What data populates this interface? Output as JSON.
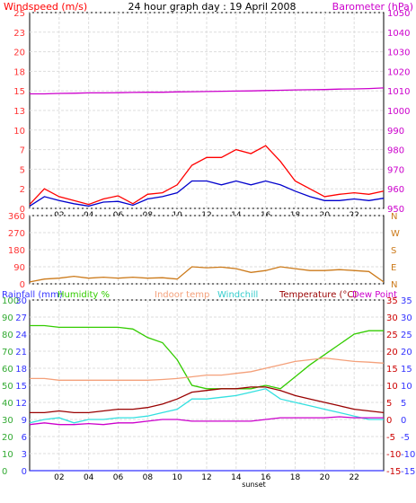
{
  "title": "24 hour graph day : 19 April 2008",
  "x_ticks": [
    "02",
    "04",
    "06",
    "08",
    "10",
    "12",
    "14",
    "16",
    "18",
    "20",
    "22"
  ],
  "sunset_label": "sunset",
  "colors": {
    "wind": "#ff0000",
    "wind_avg": "#0000cc",
    "barometer": "#cc00cc",
    "direction": "#cc7a1a",
    "rainfall": "#3333ff",
    "humidity": "#33cc00",
    "indoor": "#f4a07a",
    "windchill": "#33e0e0",
    "temperature": "#990000",
    "dewpoint": "#cc00cc",
    "axis_left": "#33aa33",
    "axis_right": "#ff3333",
    "grid": "#dddddd"
  },
  "chart_data": [
    {
      "type": "line",
      "title": "24 hour graph day : 19 April 2008",
      "left_label": "Windspeed (m/s)",
      "right_label": "Barometer (hPa)",
      "left_ticks": [
        "0",
        "2",
        "5",
        "7",
        "10",
        "13",
        "15",
        "18",
        "20",
        "23",
        "25"
      ],
      "right_ticks": [
        "950",
        "960",
        "970",
        "980",
        "990",
        "1000",
        "1010",
        "1020",
        "1030",
        "1040",
        "1050"
      ],
      "ylim_left": [
        0,
        25
      ],
      "ylim_right": [
        950,
        1050
      ],
      "x": [
        0,
        1,
        2,
        3,
        4,
        5,
        6,
        7,
        8,
        9,
        10,
        11,
        12,
        13,
        14,
        15,
        16,
        17,
        18,
        19,
        20,
        21,
        22,
        23,
        24
      ],
      "series": [
        {
          "key": "wind_gust",
          "values": [
            0.5,
            2.5,
            1.5,
            1.0,
            0.5,
            1.2,
            1.6,
            0.6,
            1.8,
            2.0,
            3.0,
            5.5,
            6.5,
            6.5,
            7.5,
            7.0,
            8.0,
            6.0,
            3.5,
            2.5,
            1.5,
            1.8,
            2.0,
            1.8,
            2.2
          ]
        },
        {
          "key": "wind_avg",
          "values": [
            0.3,
            1.5,
            1.0,
            0.6,
            0.3,
            0.8,
            0.9,
            0.4,
            1.2,
            1.5,
            2.0,
            3.5,
            3.5,
            3.0,
            3.5,
            3.0,
            3.5,
            3.0,
            2.2,
            1.5,
            1.0,
            1.0,
            1.2,
            1.0,
            1.3
          ]
        },
        {
          "key": "barometer",
          "axis": "right",
          "values": [
            1008.5,
            1008.5,
            1008.7,
            1008.8,
            1009.0,
            1009.0,
            1009.1,
            1009.2,
            1009.3,
            1009.3,
            1009.5,
            1009.6,
            1009.7,
            1009.8,
            1009.9,
            1010.0,
            1010.2,
            1010.3,
            1010.5,
            1010.6,
            1010.7,
            1010.9,
            1011.0,
            1011.2,
            1011.5
          ]
        }
      ]
    },
    {
      "type": "line",
      "left_ticks": [
        "0",
        "90",
        "180",
        "270",
        "360"
      ],
      "right_ticks": [
        "N",
        "E",
        "S",
        "W",
        "N"
      ],
      "ylim": [
        0,
        360
      ],
      "x": [
        0,
        1,
        2,
        3,
        4,
        5,
        6,
        7,
        8,
        9,
        10,
        11,
        12,
        13,
        14,
        15,
        16,
        17,
        18,
        19,
        20,
        21,
        22,
        23,
        24
      ],
      "series": [
        {
          "key": "direction",
          "values": [
            10,
            25,
            30,
            40,
            30,
            35,
            30,
            35,
            30,
            32,
            25,
            90,
            85,
            88,
            80,
            60,
            70,
            90,
            80,
            70,
            70,
            75,
            70,
            65,
            10
          ]
        }
      ]
    },
    {
      "type": "line",
      "labels": {
        "rainfall": "Rainfall (mm)",
        "humidity": "Humidity %",
        "indoor": "Indoor temp",
        "windchill": "Windchill",
        "temperature": "Temperature (°C)",
        "dewpoint": "Dew Point"
      },
      "left_ticks_humidity": [
        "0",
        "10",
        "20",
        "30",
        "40",
        "50",
        "60",
        "70",
        "80",
        "90",
        "100"
      ],
      "left_ticks_rain": [
        "0",
        "3",
        "6",
        "9",
        "12",
        "15",
        "18",
        "21",
        "24",
        "27",
        "30"
      ],
      "right_ticks_a": [
        "-15",
        "-10",
        "-5",
        "0",
        "5",
        "10",
        "15",
        "20",
        "25",
        "30",
        "35"
      ],
      "right_ticks_b": [
        "-15",
        "-10",
        "-5",
        "0",
        "5",
        "10",
        "15",
        "20",
        "25",
        "30",
        "35"
      ],
      "ylim_humidity": [
        0,
        100
      ],
      "ylim_temp": [
        -15,
        35
      ],
      "x": [
        0,
        1,
        2,
        3,
        4,
        5,
        6,
        7,
        8,
        9,
        10,
        11,
        12,
        13,
        14,
        15,
        16,
        17,
        18,
        19,
        20,
        21,
        22,
        23,
        24
      ],
      "series": [
        {
          "key": "humidity",
          "axis": "humidity",
          "values": [
            85,
            85,
            84,
            84,
            84,
            84,
            84,
            83,
            78,
            75,
            65,
            50,
            48,
            48,
            48,
            48,
            50,
            48,
            55,
            62,
            68,
            74,
            80,
            82,
            82
          ]
        },
        {
          "key": "indoor",
          "axis": "temp",
          "values": [
            12,
            12,
            11.5,
            11.5,
            11.5,
            11.5,
            11.5,
            11.5,
            11.5,
            11.7,
            12,
            12.5,
            13,
            13,
            13.5,
            14,
            15,
            16,
            17,
            17.5,
            18,
            17.5,
            17,
            16.8,
            16.5
          ]
        },
        {
          "key": "windchill",
          "axis": "temp",
          "values": [
            -1,
            0,
            0.5,
            -1,
            0,
            0,
            0.5,
            0.5,
            1,
            2,
            3,
            6,
            6,
            6.5,
            7,
            8,
            9,
            6,
            5,
            4,
            3,
            2,
            1,
            0,
            0
          ]
        },
        {
          "key": "temperature",
          "axis": "temp",
          "values": [
            2,
            2,
            2.5,
            2,
            2,
            2.5,
            3,
            3,
            3.5,
            4.5,
            6,
            8,
            8.5,
            9,
            9,
            9.5,
            9.5,
            8.5,
            7,
            6,
            5,
            4,
            3,
            2.5,
            2
          ]
        },
        {
          "key": "dewpoint",
          "axis": "temp",
          "values": [
            -1.5,
            -1,
            -1.5,
            -1.5,
            -1.2,
            -1.5,
            -1,
            -1,
            -0.5,
            0,
            0,
            -0.5,
            -0.5,
            -0.5,
            -0.5,
            -0.5,
            0,
            0.5,
            0.5,
            0.5,
            0.5,
            0.8,
            0.5,
            0.5,
            0.5
          ]
        },
        {
          "key": "rainfall",
          "axis": "rain",
          "values": [
            0,
            0,
            0,
            0,
            0,
            0,
            0,
            0,
            0,
            0,
            0,
            0,
            0,
            0,
            0,
            0,
            0,
            0,
            0,
            0,
            0,
            0,
            0,
            0,
            0
          ]
        }
      ]
    }
  ]
}
